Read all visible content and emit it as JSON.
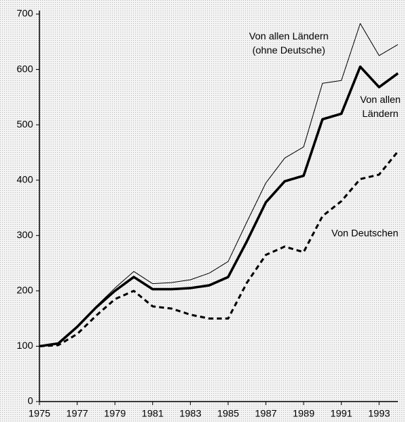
{
  "chart_data": {
    "type": "line",
    "x": [
      1975,
      1976,
      1977,
      1978,
      1979,
      1980,
      1981,
      1982,
      1983,
      1984,
      1985,
      1986,
      1987,
      1988,
      1989,
      1990,
      1991,
      1992,
      1993,
      1994
    ],
    "series": [
      {
        "name": "Von allen Ländern (ohne Deutsche)",
        "color": "#000000",
        "width": 1,
        "dash": false,
        "values": [
          100,
          105,
          135,
          172,
          205,
          235,
          213,
          215,
          220,
          232,
          253,
          325,
          395,
          440,
          460,
          575,
          580,
          683,
          625,
          645
        ]
      },
      {
        "name": "Von allen Ländern",
        "color": "#000000",
        "width": 3.5,
        "dash": false,
        "values": [
          100,
          105,
          135,
          170,
          200,
          225,
          203,
          203,
          205,
          210,
          225,
          290,
          360,
          398,
          408,
          510,
          520,
          605,
          568,
          593
        ]
      },
      {
        "name": "Von Deutschen",
        "color": "#000000",
        "width": 3,
        "dash": true,
        "values": [
          100,
          102,
          122,
          155,
          185,
          200,
          172,
          168,
          157,
          150,
          150,
          215,
          265,
          280,
          270,
          335,
          362,
          402,
          410,
          452
        ]
      }
    ],
    "xlim": [
      1975,
      1994
    ],
    "xticks": [
      1975,
      1977,
      1979,
      1981,
      1983,
      1985,
      1987,
      1989,
      1991,
      1993
    ],
    "ylim": [
      0,
      700
    ],
    "yticks": [
      0,
      100,
      200,
      300,
      400,
      500,
      600,
      700
    ]
  }
}
